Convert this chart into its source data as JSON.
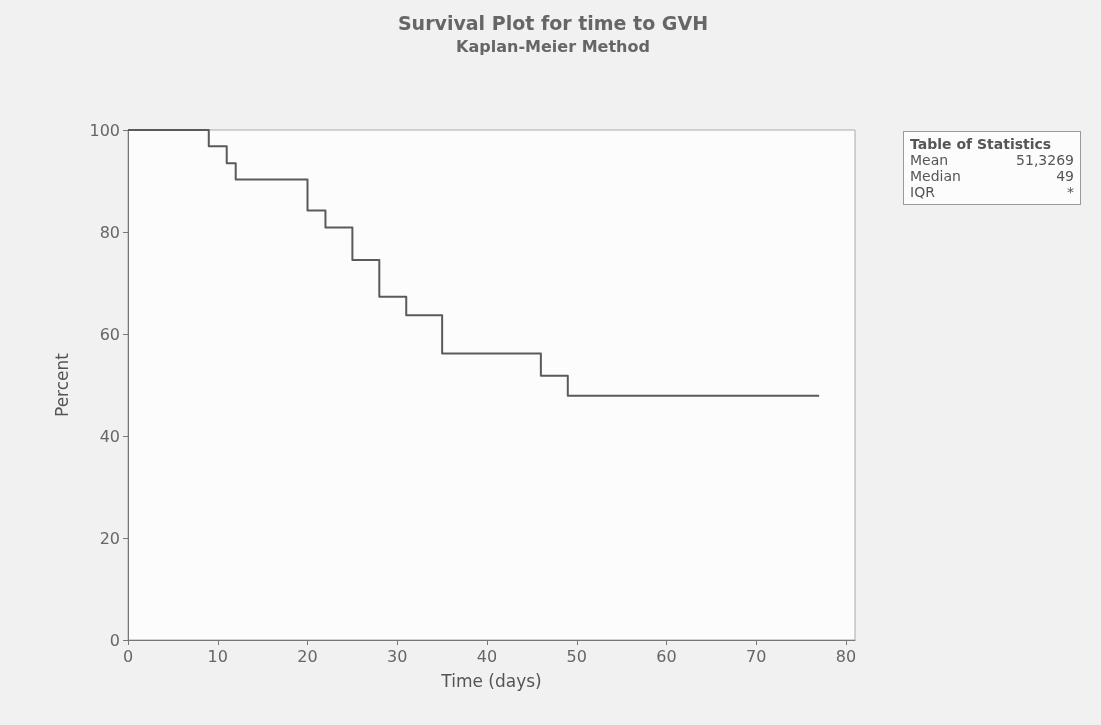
{
  "chart_data": {
    "type": "step",
    "title": "Survival Plot for time to GVH",
    "subtitle": "Kaplan-Meier Method",
    "xlabel": "Time (days)",
    "ylabel": "Percent",
    "x": [
      0,
      9,
      11,
      12,
      20,
      22,
      25,
      28,
      31,
      35,
      46,
      49,
      77
    ],
    "series": [
      {
        "color": "#5a5a5a",
        "values": [
          100,
          96.8,
          93.5,
          90.3,
          84.2,
          80.9,
          74.5,
          67.3,
          63.7,
          56.2,
          51.8,
          47.9,
          47.9
        ]
      }
    ],
    "xlim": [
      0,
      81
    ],
    "xticks": [
      0,
      10,
      20,
      30,
      40,
      50,
      60,
      70,
      80
    ],
    "ylim": [
      0,
      100
    ],
    "yticks": [
      0,
      20,
      40,
      60,
      80,
      100
    ],
    "grid": false,
    "marker": "none",
    "line_style": "solid",
    "annotations": [
      "Table of Statistics",
      "Mean",
      "51,3269",
      "Median",
      "49",
      "IQR",
      "*"
    ]
  }
}
